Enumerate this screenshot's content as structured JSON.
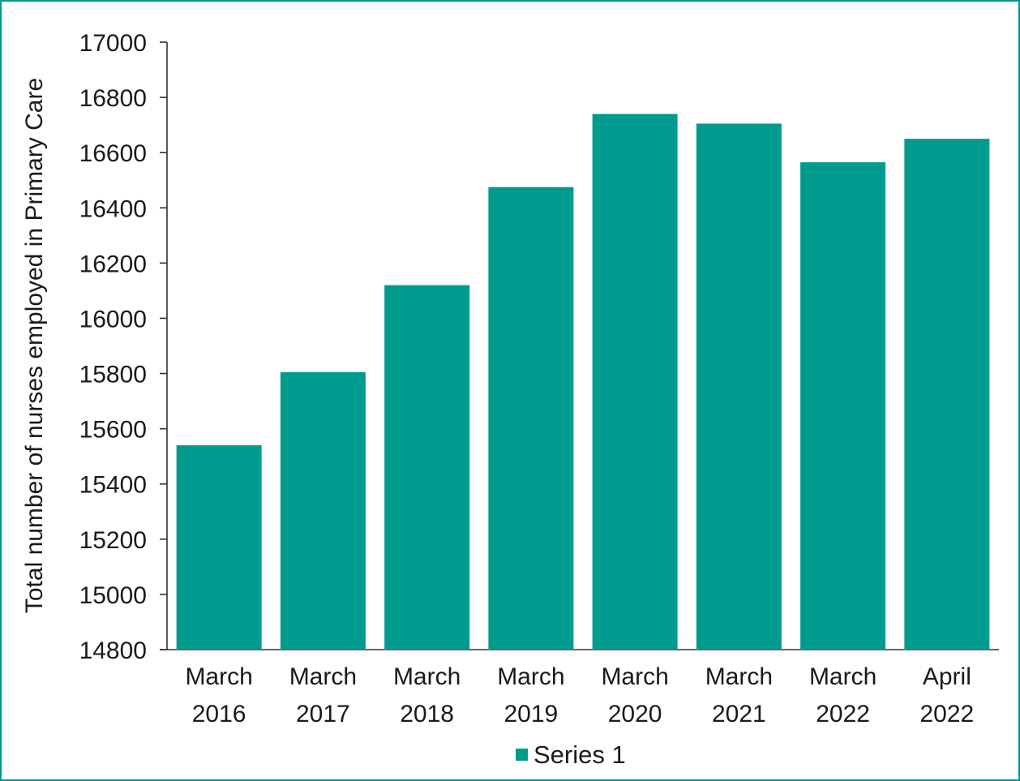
{
  "chart_data": {
    "type": "bar",
    "title": "",
    "xlabel": "",
    "ylabel": "Total number of nurses employed in Primary Care",
    "categories": [
      [
        "March",
        "2016"
      ],
      [
        "March",
        "2017"
      ],
      [
        "March",
        "2018"
      ],
      [
        "March",
        "2019"
      ],
      [
        "March",
        "2020"
      ],
      [
        "March",
        "2021"
      ],
      [
        "March",
        "2022"
      ],
      [
        "April",
        "2022"
      ]
    ],
    "series": [
      {
        "name": "Series 1",
        "color": "#009b8f",
        "values": [
          15540,
          15805,
          16120,
          16475,
          16740,
          16705,
          16565,
          16650
        ]
      }
    ],
    "ylim": [
      14800,
      17000
    ],
    "yticks": [
      14800,
      15000,
      15200,
      15400,
      15600,
      15800,
      16000,
      16200,
      16400,
      16600,
      16800,
      17000
    ],
    "grid": false,
    "legend_position": "bottom-center"
  }
}
